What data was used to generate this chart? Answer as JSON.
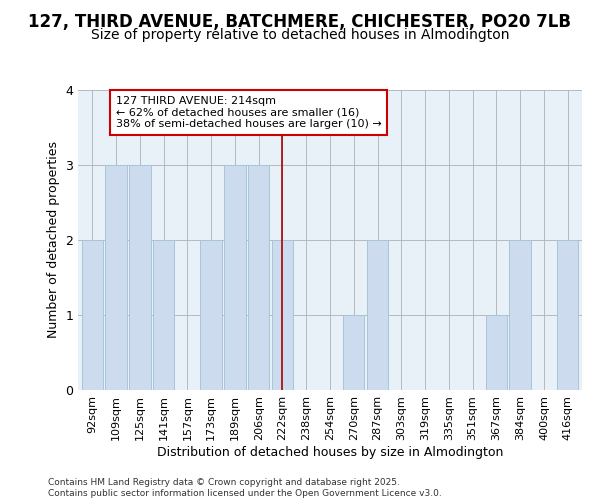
{
  "title1": "127, THIRD AVENUE, BATCHMERE, CHICHESTER, PO20 7LB",
  "title2": "Size of property relative to detached houses in Almodington",
  "xlabel": "Distribution of detached houses by size in Almodington",
  "ylabel": "Number of detached properties",
  "categories": [
    "92sqm",
    "109sqm",
    "125sqm",
    "141sqm",
    "157sqm",
    "173sqm",
    "189sqm",
    "206sqm",
    "222sqm",
    "238sqm",
    "254sqm",
    "270sqm",
    "287sqm",
    "303sqm",
    "319sqm",
    "335sqm",
    "351sqm",
    "367sqm",
    "384sqm",
    "400sqm",
    "416sqm"
  ],
  "values": [
    2,
    3,
    3,
    2,
    0,
    2,
    3,
    3,
    2,
    0,
    0,
    1,
    2,
    0,
    0,
    0,
    0,
    1,
    2,
    0,
    2
  ],
  "bar_color": "#ccdcee",
  "bar_edge_color": "#a8c4da",
  "grid_color": "#b0b0b0",
  "background_color": "#ffffff",
  "plot_bg_color": "#e8f0f8",
  "vline_x": "222sqm",
  "vline_color": "#aa0000",
  "annotation_text": "127 THIRD AVENUE: 214sqm\n← 62% of detached houses are smaller (16)\n38% of semi-detached houses are larger (10) →",
  "annotation_box_color": "#ffffff",
  "annotation_box_edge": "#cc0000",
  "ylim": [
    0,
    4
  ],
  "yticks": [
    0,
    1,
    2,
    3,
    4
  ],
  "footer": "Contains HM Land Registry data © Crown copyright and database right 2025.\nContains public sector information licensed under the Open Government Licence v3.0.",
  "title1_fontsize": 12,
  "title2_fontsize": 10,
  "xlabel_fontsize": 9,
  "ylabel_fontsize": 9,
  "tick_fontsize": 8,
  "ann_fontsize": 8,
  "footer_fontsize": 6.5
}
